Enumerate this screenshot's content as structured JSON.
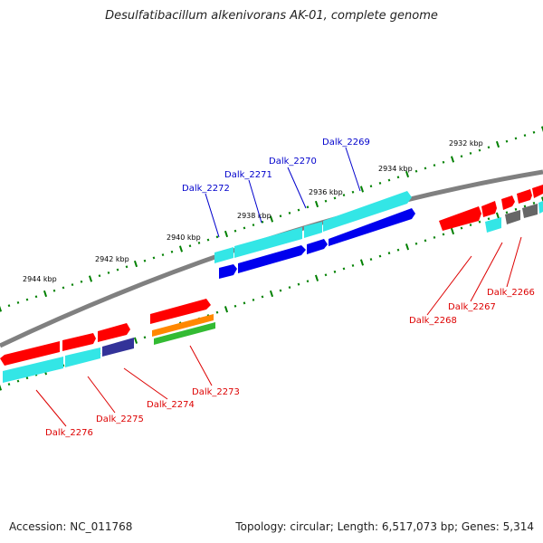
{
  "title": "Desulfatibacillum alkenivorans AK-01, complete genome",
  "footer": {
    "accession": "Accession: NC_011768",
    "info": "Topology: circular; Length: 6,517,073 bp; Genes: 5,314"
  },
  "colors": {
    "backbone": "#808080",
    "tick": "#008000",
    "upper_label": "#0000cc",
    "lower_label": "#dd0000",
    "gene_red": "#ff0000",
    "gene_cyan": "#33e6e6",
    "gene_blue": "#0000ee",
    "gene_gray": "#666666",
    "gene_navy": "#333399",
    "gene_orange": "#ff8800",
    "gene_green": "#33bb33"
  },
  "kbp_labels": [
    "2932 kbp",
    "2934 kbp",
    "2936 kbp",
    "2938 kbp",
    "2940 kbp",
    "2942 kbp",
    "2944 kbp"
  ],
  "gene_labels_upper": [
    "Dalk_2269",
    "Dalk_2270",
    "Dalk_2271",
    "Dalk_2272"
  ],
  "gene_labels_lower": [
    "Dalk_2266",
    "Dalk_2267",
    "Dalk_2268",
    "Dalk_2273",
    "Dalk_2274",
    "Dalk_2275",
    "Dalk_2276"
  ]
}
